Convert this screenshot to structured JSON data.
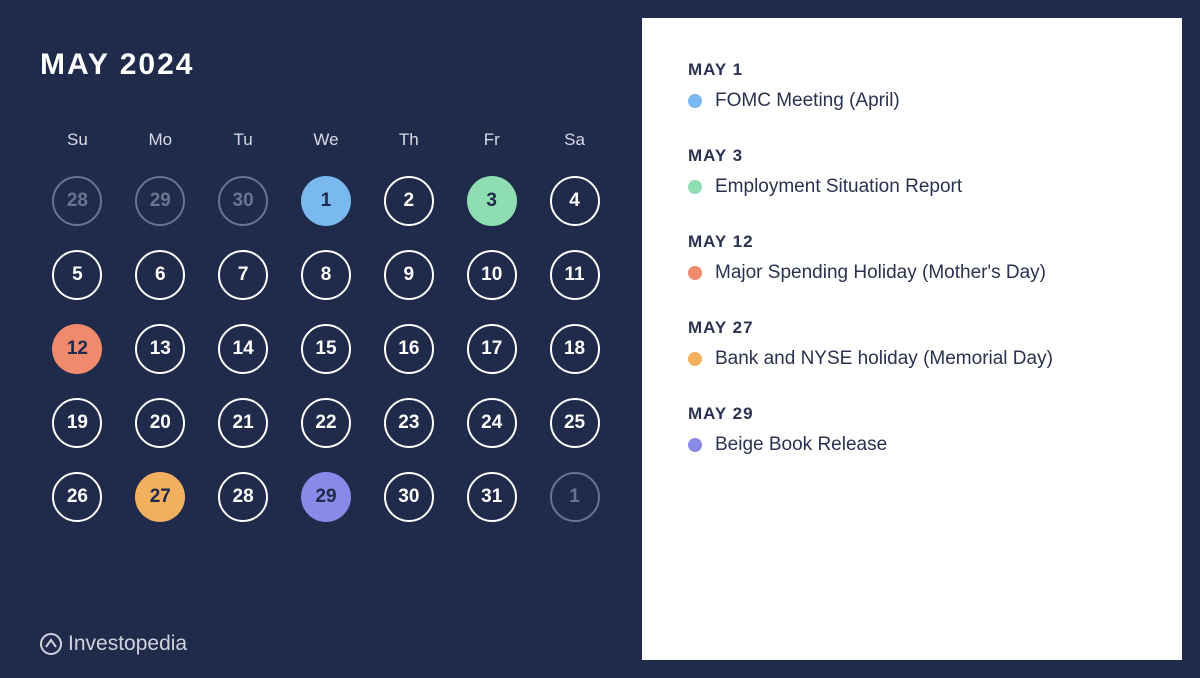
{
  "title": "MAY 2024",
  "colors": {
    "page_bg": "#202a4a",
    "panel_bg": "#ffffff",
    "day_border": "#ffffff",
    "day_text": "#ffffff",
    "outside_color": "#6b7390",
    "dow_color": "#d8dbe6",
    "event_text": "#2a3250",
    "logo_color": "#d0d3de"
  },
  "calendar": {
    "day_headers": [
      "Su",
      "Mo",
      "Tu",
      "We",
      "Th",
      "Fr",
      "Sa"
    ],
    "circle_size": 50,
    "border_width": 2.5,
    "fontsize_day": 19,
    "fontsize_dow": 17,
    "gap": 24,
    "cells": [
      {
        "n": "28",
        "kind": "outside"
      },
      {
        "n": "29",
        "kind": "outside"
      },
      {
        "n": "30",
        "kind": "outside"
      },
      {
        "n": "1",
        "kind": "filled",
        "fill": "#7ab8f0",
        "text": "#1f2949"
      },
      {
        "n": "2",
        "kind": "normal"
      },
      {
        "n": "3",
        "kind": "filled",
        "fill": "#8fddb3",
        "text": "#1f2949"
      },
      {
        "n": "4",
        "kind": "normal"
      },
      {
        "n": "5",
        "kind": "normal"
      },
      {
        "n": "6",
        "kind": "normal"
      },
      {
        "n": "7",
        "kind": "normal"
      },
      {
        "n": "8",
        "kind": "normal"
      },
      {
        "n": "9",
        "kind": "normal"
      },
      {
        "n": "10",
        "kind": "normal"
      },
      {
        "n": "11",
        "kind": "normal"
      },
      {
        "n": "12",
        "kind": "filled",
        "fill": "#f08a6d",
        "text": "#1f2949"
      },
      {
        "n": "13",
        "kind": "normal"
      },
      {
        "n": "14",
        "kind": "normal"
      },
      {
        "n": "15",
        "kind": "normal"
      },
      {
        "n": "16",
        "kind": "normal"
      },
      {
        "n": "17",
        "kind": "normal"
      },
      {
        "n": "18",
        "kind": "normal"
      },
      {
        "n": "19",
        "kind": "normal"
      },
      {
        "n": "20",
        "kind": "normal"
      },
      {
        "n": "21",
        "kind": "normal"
      },
      {
        "n": "22",
        "kind": "normal"
      },
      {
        "n": "23",
        "kind": "normal"
      },
      {
        "n": "24",
        "kind": "normal"
      },
      {
        "n": "25",
        "kind": "normal"
      },
      {
        "n": "26",
        "kind": "normal"
      },
      {
        "n": "27",
        "kind": "filled",
        "fill": "#f2b05e",
        "text": "#1f2949"
      },
      {
        "n": "28",
        "kind": "normal"
      },
      {
        "n": "29",
        "kind": "filled",
        "fill": "#8a89e8",
        "text": "#1f2949"
      },
      {
        "n": "30",
        "kind": "normal"
      },
      {
        "n": "31",
        "kind": "normal"
      },
      {
        "n": "1",
        "kind": "outside"
      }
    ]
  },
  "events": [
    {
      "date": "MAY 1",
      "dot": "#7ab8f0",
      "label": "FOMC Meeting (April)"
    },
    {
      "date": "MAY 3",
      "dot": "#8fddb3",
      "label": "Employment Situation Report"
    },
    {
      "date": "MAY 12",
      "dot": "#f08a6d",
      "label": "Major Spending Holiday (Mother's Day)"
    },
    {
      "date": "MAY 27",
      "dot": "#f2b05e",
      "label": "Bank and NYSE holiday (Memorial Day)"
    },
    {
      "date": "MAY 29",
      "dot": "#8a89e8",
      "label": "Beige Book Release"
    }
  ],
  "logo_text": "Investopedia"
}
